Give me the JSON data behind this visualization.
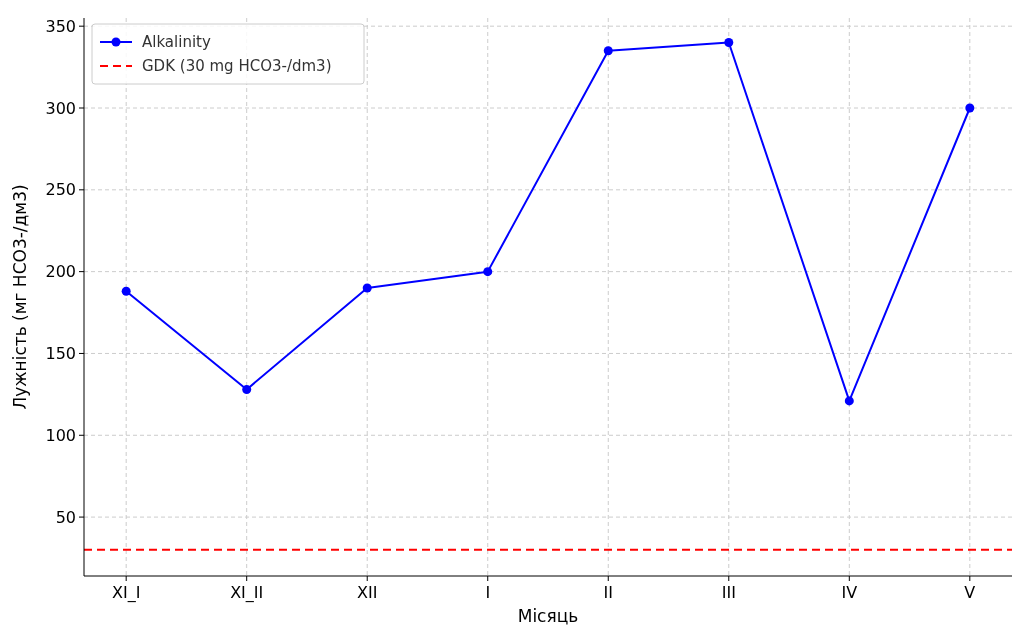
{
  "chart_data": {
    "type": "line",
    "xlabel": "Місяць",
    "ylabel": "Лужність (мг HCO3-/дм3)",
    "categories": [
      "XI_I",
      "XI_II",
      "XII",
      "I",
      "II",
      "III",
      "IV",
      "V"
    ],
    "series": [
      {
        "name": "Alkalinity",
        "color": "#0000ff",
        "values": [
          188,
          128,
          190,
          200,
          335,
          340,
          121,
          300
        ]
      }
    ],
    "ylim": [
      14,
      355
    ],
    "yticks": [
      50,
      100,
      150,
      200,
      250,
      300,
      350
    ],
    "ref_lines": [
      {
        "axis": "y",
        "value": 30,
        "label": "GDK (30 mg HCO3-/dm3)",
        "color": "#ff0000",
        "line_style": "dashed"
      }
    ],
    "grid": true,
    "legend": "top left",
    "marker": "circle",
    "line_style": "solid"
  }
}
